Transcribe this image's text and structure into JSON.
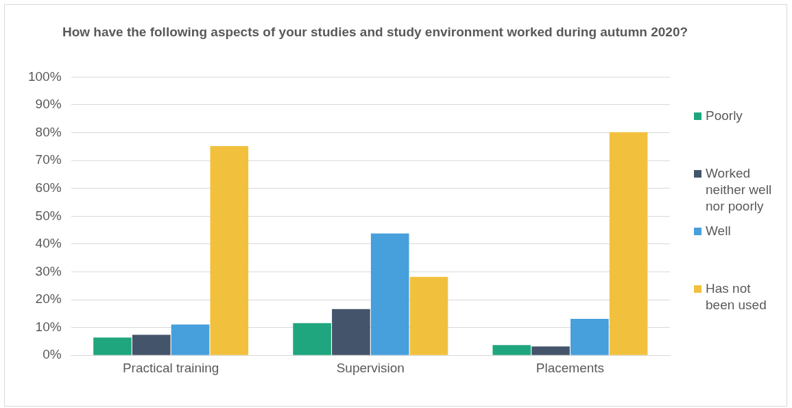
{
  "chart_data": {
    "type": "bar",
    "title": "How have the following aspects of your studies and study environment worked during autumn 2020?",
    "categories": [
      "Practical training",
      "Supervision",
      "Placements"
    ],
    "series": [
      {
        "name": "Poorly",
        "color": "#1fa67e",
        "values": [
          6.4,
          11.6,
          3.7
        ]
      },
      {
        "name": "Worked neither well nor poorly",
        "color": "#44546a",
        "values": [
          7.4,
          16.6,
          3.2
        ]
      },
      {
        "name": "Well",
        "color": "#479fdc",
        "values": [
          11.1,
          43.8,
          13.1
        ]
      },
      {
        "name": "Has not been used",
        "color": "#f1c13e",
        "values": [
          75.2,
          28.2,
          80.2
        ]
      }
    ],
    "ylim": [
      0,
      100
    ],
    "yticks": [
      {
        "value": 0,
        "label": "0%"
      },
      {
        "value": 10,
        "label": "10%"
      },
      {
        "value": 20,
        "label": "20%"
      },
      {
        "value": 30,
        "label": "30%"
      },
      {
        "value": 40,
        "label": "40%"
      },
      {
        "value": 50,
        "label": "50%"
      },
      {
        "value": 60,
        "label": "60%"
      },
      {
        "value": 70,
        "label": "70%"
      },
      {
        "value": 80,
        "label": "80%"
      },
      {
        "value": 90,
        "label": "90%"
      },
      {
        "value": 100,
        "label": "100%"
      }
    ],
    "grid": "y",
    "legend": "right"
  }
}
